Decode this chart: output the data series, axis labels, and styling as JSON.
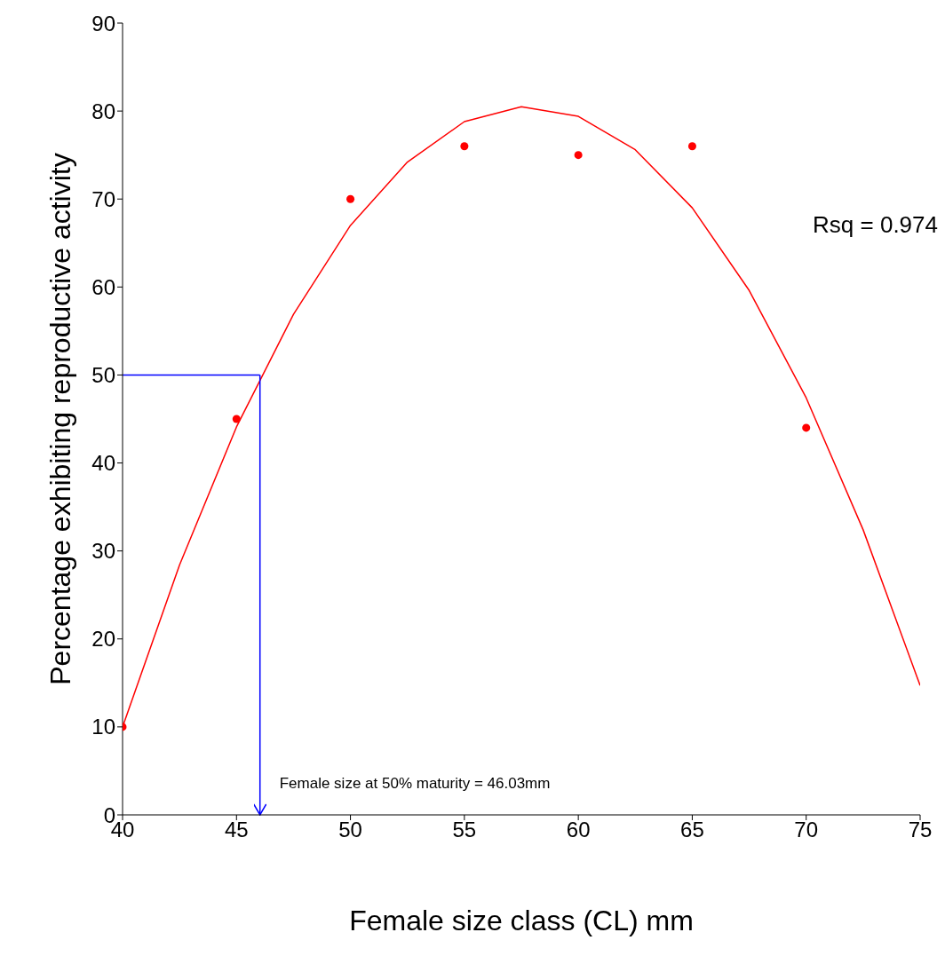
{
  "chart_data": {
    "type": "scatter",
    "xlabel": "Female size class (CL) mm",
    "ylabel": "Percentage exhibiting reproductive activity",
    "xlim": [
      40,
      75
    ],
    "xticks": [
      40,
      45,
      50,
      55,
      60,
      65,
      70,
      75
    ],
    "ylim": [
      0,
      90
    ],
    "yticks": [
      0,
      10,
      20,
      30,
      40,
      50,
      60,
      70,
      80,
      90
    ],
    "grid": false,
    "legend": false,
    "marker": "circle",
    "annotations": [
      "Rsq = 0.974",
      {
        "text": "Female size at 50% maturity = 46.03mm",
        "x": 46.03,
        "y": 0
      }
    ],
    "ref_lines": [
      {
        "axis": "y",
        "value": 50,
        "color": "#0000ff"
      },
      {
        "axis": "x",
        "value": 46.03,
        "color": "#0000ff"
      }
    ],
    "series": [
      {
        "color": "#ff0000",
        "x": [
          40,
          45,
          50,
          55,
          60,
          65,
          70
        ],
        "values": [
          10,
          45,
          70,
          76,
          75,
          76,
          44
        ]
      },
      {
        "type": "line",
        "color": "#ff0000",
        "marker": "none",
        "x": [
          40,
          42.5,
          45,
          47.5,
          50,
          52.5,
          55,
          57.5,
          60,
          62.5,
          65,
          67.5,
          70,
          72.5,
          75
        ],
        "values": [
          10,
          28.4,
          44.1,
          56.9,
          67,
          74.2,
          78.8,
          80.5,
          79.4,
          75.6,
          69,
          59.6,
          47.4,
          32.4,
          14.7
        ]
      }
    ]
  }
}
